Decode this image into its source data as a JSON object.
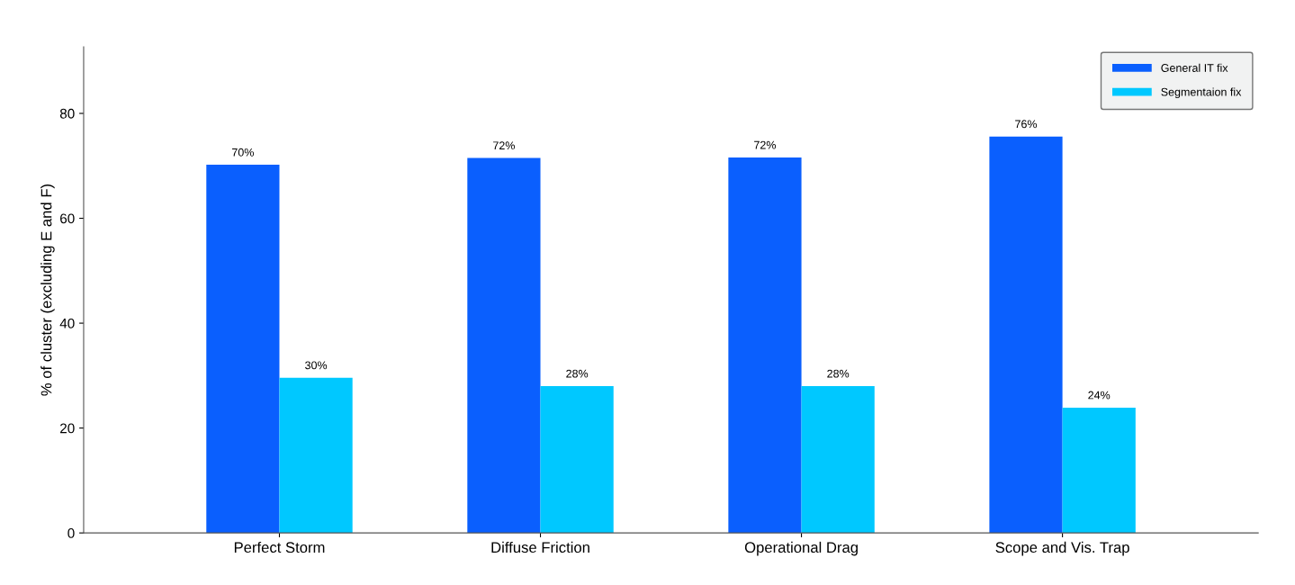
{
  "chart_data": {
    "type": "bar",
    "ylabel": "% of cluster (excluding E and F)",
    "categories": [
      "Perfect Storm",
      "Diffuse Friction",
      "Operational Drag",
      "Scope and Vis. Trap"
    ],
    "series": [
      {
        "name": "General IT fix",
        "color": "#0a5ffe",
        "values": [
          70.2,
          71.5,
          71.6,
          75.6
        ],
        "value_labels": [
          "70%",
          "72%",
          "72%",
          "76%"
        ]
      },
      {
        "name": "Segmentaion fix",
        "color": "#00c8ff",
        "values": [
          29.6,
          28.0,
          28.0,
          23.9
        ],
        "value_labels": [
          "30%",
          "28%",
          "28%",
          "24%"
        ]
      }
    ],
    "ylim": [
      0,
      92.7
    ],
    "yticks": [
      0,
      20,
      40,
      60,
      80
    ],
    "grid": false,
    "legend": "top right"
  }
}
